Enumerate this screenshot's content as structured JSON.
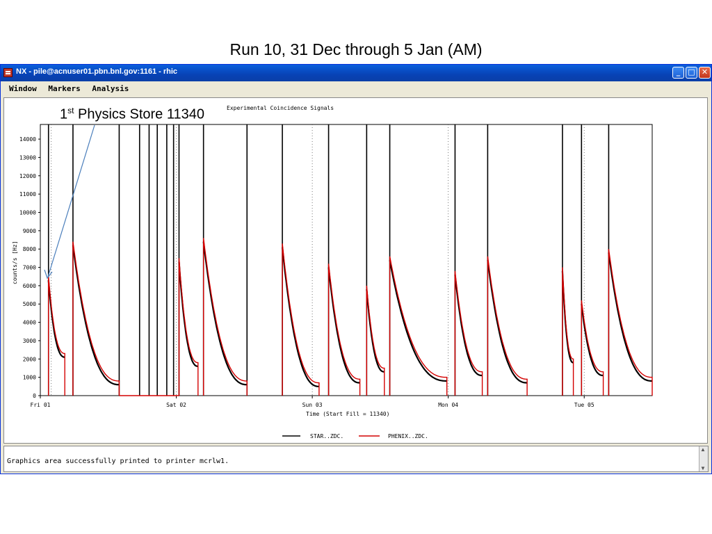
{
  "slide": {
    "title": "Run 10, 31 Dec through 5 Jan (AM)",
    "annotation_number": "1",
    "annotation_suffix": "st",
    "annotation_text": " Physics Store 11340"
  },
  "window": {
    "title": "NX - pile@acnuser01.pbn.bnl.gov:1161 - rhic",
    "minimize_label": "_",
    "maximize_label": "□",
    "close_label": "✕"
  },
  "menu": {
    "items": [
      "Window",
      "Markers",
      "Analysis"
    ]
  },
  "status": {
    "message": "Graphics area successfully printed to printer mcrlw1."
  },
  "colors": {
    "star": "#000000",
    "phenix": "#d40000",
    "titlebar": "#0842b5"
  },
  "chart_data": {
    "type": "line",
    "title": "Experimental Coincidence Signals",
    "xlabel": "Time (Start Fill = 11340)",
    "ylabel": "counts/s [Hz]",
    "ylim": [
      0,
      14800
    ],
    "yticks": [
      0,
      1000,
      2000,
      3000,
      4000,
      5000,
      6000,
      7000,
      8000,
      9000,
      10000,
      11000,
      12000,
      13000,
      14000
    ],
    "xlim": [
      0,
      4.5
    ],
    "xticks": [
      {
        "value": 0,
        "label": "Fri 01"
      },
      {
        "value": 1,
        "label": "Sat 02"
      },
      {
        "value": 2,
        "label": "Sun 03"
      },
      {
        "value": 3,
        "label": "Mon 04"
      },
      {
        "value": 4,
        "label": "Tue 05"
      }
    ],
    "legend": [
      "STAR..ZDC.",
      "PHENIX..ZDC."
    ],
    "legend_position": "bottom-center",
    "stores": [
      {
        "start": 0.06,
        "end": 0.18,
        "peak": 6500,
        "end_value": 2300
      },
      {
        "start": 0.24,
        "end": 0.58,
        "peak": 8400,
        "end_value": 800
      },
      {
        "start": 1.02,
        "end": 1.16,
        "peak": 7500,
        "end_value": 1800
      },
      {
        "start": 1.2,
        "end": 1.52,
        "peak": 8600,
        "end_value": 800
      },
      {
        "start": 1.78,
        "end": 2.05,
        "peak": 8300,
        "end_value": 700
      },
      {
        "start": 2.12,
        "end": 2.35,
        "peak": 7200,
        "end_value": 900
      },
      {
        "start": 2.4,
        "end": 2.53,
        "peak": 6000,
        "end_value": 1500
      },
      {
        "start": 2.57,
        "end": 2.99,
        "peak": 7600,
        "end_value": 1000
      },
      {
        "start": 3.05,
        "end": 3.25,
        "peak": 6800,
        "end_value": 1300
      },
      {
        "start": 3.29,
        "end": 3.58,
        "peak": 7600,
        "end_value": 900
      },
      {
        "start": 3.84,
        "end": 3.92,
        "peak": 7000,
        "end_value": 2000
      },
      {
        "start": 3.98,
        "end": 4.14,
        "peak": 5200,
        "end_value": 1300
      },
      {
        "start": 4.18,
        "end": 4.5,
        "peak": 8000,
        "end_value": 1000
      }
    ],
    "spikes": [
      0.06,
      0.24,
      0.58,
      0.73,
      0.8,
      0.86,
      0.93,
      0.98,
      1.02,
      1.2,
      1.52,
      1.78,
      2.12,
      2.4,
      2.57,
      3.05,
      3.29,
      3.84,
      3.98,
      4.18
    ],
    "dotted_lines": [
      0.08,
      1.0,
      2.0,
      3.0,
      4.0
    ]
  }
}
